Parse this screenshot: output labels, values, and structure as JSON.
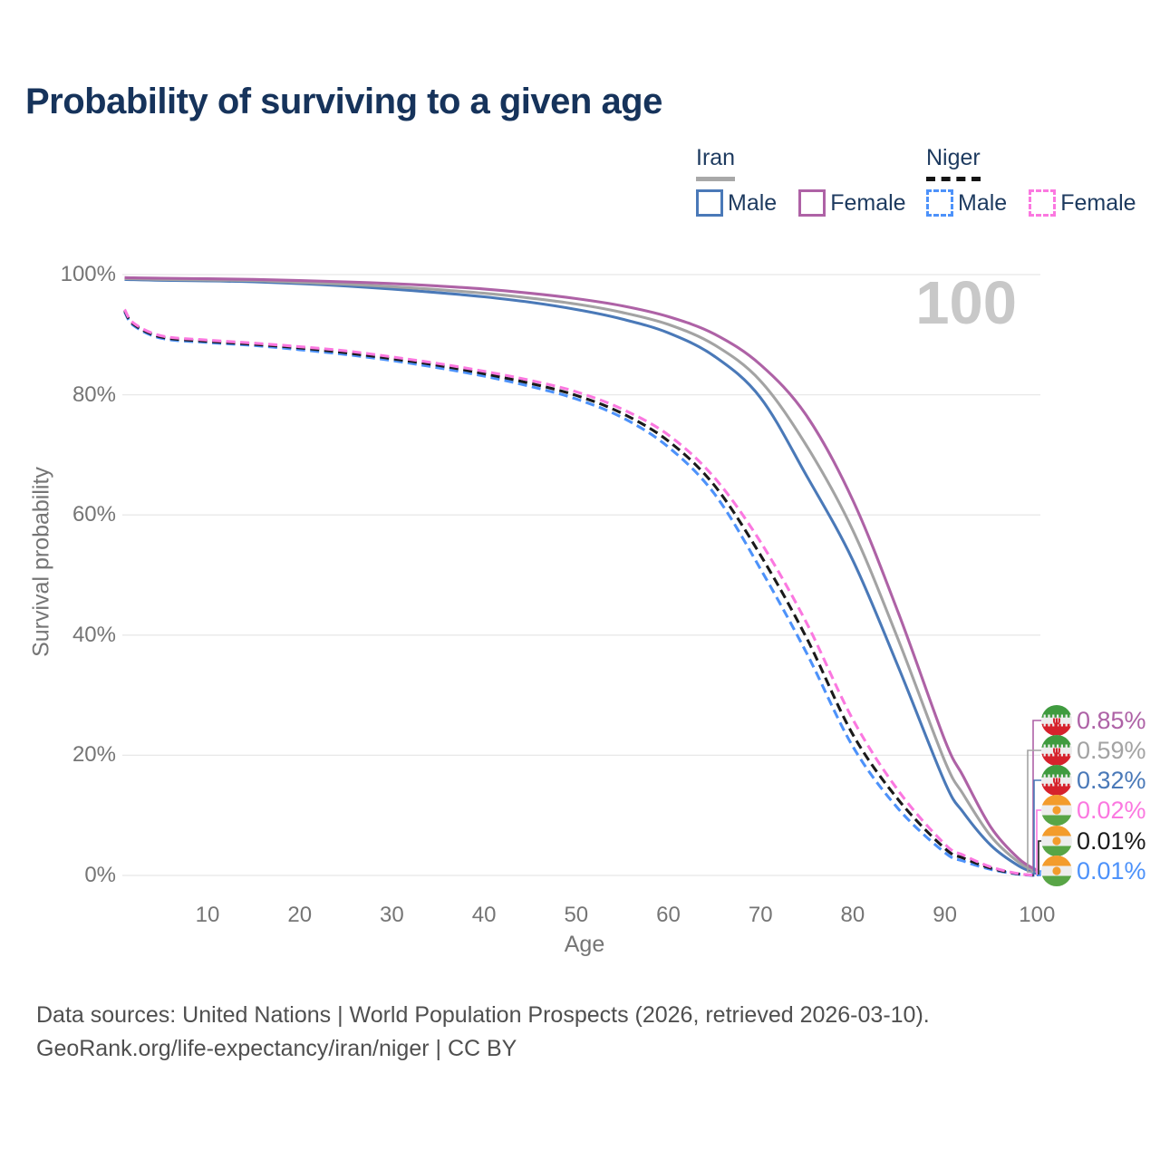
{
  "title": "Probability of surviving to a given age",
  "watermark": "100",
  "legend": {
    "groups": [
      {
        "title": "Iran",
        "line_style": "solid",
        "items": [
          {
            "label": "Male"
          },
          {
            "label": "Female"
          }
        ]
      },
      {
        "title": "Niger",
        "line_style": "dashed",
        "items": [
          {
            "label": "Male"
          },
          {
            "label": "Female"
          }
        ]
      }
    ]
  },
  "colors": {
    "iran_male": "#4a79b8",
    "iran_all": "#a3a3a3",
    "iran_female": "#ae62a6",
    "niger_male": "#4d92fa",
    "niger_all": "#1a1a1a",
    "niger_female": "#fb78e0",
    "grid": "#e8e8e8",
    "title_text": "#16335b",
    "axis_text": "#757575",
    "watermark_text": "#c8c8c8"
  },
  "chart_data": {
    "type": "line",
    "title": "Probability of surviving to a given age",
    "xlabel": "Age",
    "ylabel": "Survival probability",
    "xlim": [
      1,
      100
    ],
    "ylim": [
      0,
      100
    ],
    "xticks": [
      10,
      20,
      30,
      40,
      50,
      60,
      70,
      80,
      90,
      100
    ],
    "yticks": [
      0,
      20,
      40,
      60,
      80,
      100
    ],
    "ytick_suffix": "%",
    "grid": "horizontal",
    "legend_position": "top-right",
    "x": [
      1,
      2,
      5,
      10,
      15,
      20,
      25,
      30,
      35,
      40,
      45,
      50,
      55,
      60,
      65,
      70,
      75,
      80,
      85,
      90,
      92,
      95,
      98,
      100
    ],
    "series": [
      {
        "name": "Iran Male",
        "key": "iran-male",
        "country": "Iran",
        "sex": "Male",
        "color": "#4a79b8",
        "dash": "solid",
        "values": [
          99.2,
          99.15,
          99.05,
          98.95,
          98.8,
          98.5,
          98.1,
          97.6,
          97.0,
          96.3,
          95.4,
          94.2,
          92.6,
          90.3,
          86.4,
          79.5,
          66.5,
          52.5,
          34.5,
          15.5,
          10.5,
          5.0,
          1.6,
          0.32
        ]
      },
      {
        "name": "Iran",
        "key": "iran-all",
        "country": "Iran",
        "sex": "Both",
        "color": "#a3a3a3",
        "dash": "solid",
        "values": [
          99.35,
          99.3,
          99.2,
          99.1,
          99.0,
          98.7,
          98.4,
          98.0,
          97.5,
          96.9,
          96.1,
          95.1,
          93.7,
          91.7,
          88.3,
          82.3,
          71.5,
          57.5,
          39.0,
          19.0,
          13.5,
          6.5,
          2.2,
          0.59
        ]
      },
      {
        "name": "Iran Female",
        "key": "iran-female",
        "country": "Iran",
        "sex": "Female",
        "color": "#ae62a6",
        "dash": "solid",
        "values": [
          99.5,
          99.45,
          99.4,
          99.3,
          99.2,
          99.0,
          98.8,
          98.5,
          98.1,
          97.6,
          96.9,
          96.0,
          94.8,
          93.0,
          90.1,
          85.0,
          76.5,
          62.5,
          43.5,
          22.5,
          16.5,
          8.0,
          2.8,
          0.85
        ]
      },
      {
        "name": "Niger Male",
        "key": "niger-male",
        "country": "Niger",
        "sex": "Male",
        "color": "#4d92fa",
        "dash": "dashed",
        "values": [
          93.8,
          91.5,
          89.4,
          88.7,
          88.2,
          87.5,
          86.7,
          85.7,
          84.5,
          83.1,
          81.4,
          79.3,
          76.2,
          71.3,
          63.5,
          51.0,
          37.0,
          21.5,
          11.0,
          3.8,
          2.4,
          1.0,
          0.2,
          0.01
        ]
      },
      {
        "name": "Niger",
        "key": "niger-all",
        "country": "Niger",
        "sex": "Both",
        "color": "#1a1a1a",
        "dash": "dashed",
        "values": [
          94.0,
          91.7,
          89.6,
          88.9,
          88.4,
          87.8,
          87.0,
          86.0,
          84.9,
          83.5,
          81.9,
          79.9,
          76.9,
          72.3,
          64.9,
          53.3,
          39.5,
          23.5,
          12.5,
          4.5,
          2.9,
          1.2,
          0.25,
          0.01
        ]
      },
      {
        "name": "Niger Female",
        "key": "niger-female",
        "country": "Niger",
        "sex": "Female",
        "color": "#fb78e0",
        "dash": "dashed",
        "values": [
          94.2,
          91.9,
          89.8,
          89.1,
          88.6,
          88.0,
          87.3,
          86.3,
          85.2,
          83.9,
          82.4,
          80.5,
          77.6,
          73.3,
          66.2,
          55.5,
          42.0,
          26.0,
          14.0,
          5.2,
          3.4,
          1.4,
          0.3,
          0.02
        ]
      }
    ],
    "end_labels": [
      {
        "series": "iran-female",
        "value": "0.85%",
        "end_pct": 0.85,
        "flag": "iran",
        "color": "#ae62a6"
      },
      {
        "series": "iran-all",
        "value": "0.59%",
        "end_pct": 0.59,
        "flag": "iran",
        "color": "#a3a3a3"
      },
      {
        "series": "iran-male",
        "value": "0.32%",
        "end_pct": 0.32,
        "flag": "iran",
        "color": "#4a79b8"
      },
      {
        "series": "niger-female",
        "value": "0.02%",
        "end_pct": 0.02,
        "flag": "niger",
        "color": "#fb78e0"
      },
      {
        "series": "niger-all",
        "value": "0.01%",
        "end_pct": 0.01,
        "flag": "niger",
        "color": "#1a1a1a"
      },
      {
        "series": "niger-male",
        "value": "0.01%",
        "end_pct": 0.01,
        "flag": "niger",
        "color": "#4d92fa"
      }
    ]
  },
  "footer": {
    "line1": "Data sources: United Nations | World Population Prospects (2026, retrieved 2026-03-10).",
    "line2": "GeoRank.org/life-expectancy/iran/niger | CC BY"
  }
}
